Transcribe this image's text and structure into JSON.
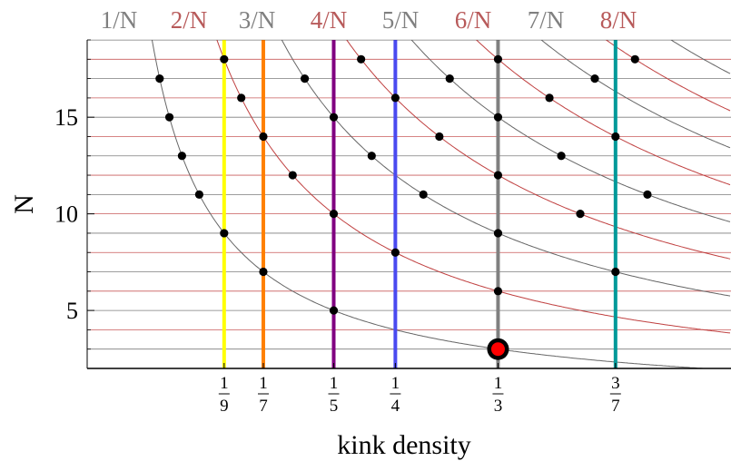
{
  "chart_data": {
    "type": "line",
    "title": "",
    "xlabel": "kink density",
    "ylabel": "N",
    "xlim": [
      0,
      0.49
    ],
    "ylim": [
      2,
      19
    ],
    "grid": "horizontal lines at each integer N from 2 to 19, alternating gray (odd N) and red (even N)",
    "y_ticks": [
      5,
      10,
      15
    ],
    "x_ticks": [
      {
        "value": 0.1111,
        "num": "1",
        "den": "9"
      },
      {
        "value": 0.1429,
        "num": "1",
        "den": "7"
      },
      {
        "value": 0.2,
        "num": "1",
        "den": "5"
      },
      {
        "value": 0.25,
        "num": "1",
        "den": "4"
      },
      {
        "value": 0.3333,
        "num": "1",
        "den": "3"
      },
      {
        "value": 0.4286,
        "num": "3",
        "den": "7"
      }
    ],
    "curve_labels": [
      {
        "k": 1,
        "label": "1/N",
        "color": "#808080"
      },
      {
        "k": 2,
        "label": "2/N",
        "color": "#b85a5a"
      },
      {
        "k": 3,
        "label": "3/N",
        "color": "#808080"
      },
      {
        "k": 4,
        "label": "4/N",
        "color": "#b85a5a"
      },
      {
        "k": 5,
        "label": "5/N",
        "color": "#808080"
      },
      {
        "k": 6,
        "label": "6/N",
        "color": "#b85a5a"
      },
      {
        "k": 7,
        "label": "7/N",
        "color": "#808080"
      },
      {
        "k": 8,
        "label": "8/N",
        "color": "#b85a5a"
      }
    ],
    "curves_k": [
      1,
      2,
      3,
      4,
      5,
      6,
      7,
      8,
      9,
      10
    ],
    "curve_colors": {
      "odd": "#666666",
      "even": "#c04040"
    },
    "vertical_lines": [
      {
        "x": 0.1111,
        "color": "#ffff00"
      },
      {
        "x": 0.1429,
        "color": "#ff8000"
      },
      {
        "x": 0.2,
        "color": "#800080"
      },
      {
        "x": 0.25,
        "color": "#4a4af0"
      },
      {
        "x": 0.3333,
        "color": "#808080"
      },
      {
        "x": 0.4286,
        "color": "#009999"
      }
    ],
    "points": [
      {
        "x": 0.0588,
        "y": 17
      },
      {
        "x": 0.0667,
        "y": 15
      },
      {
        "x": 0.0769,
        "y": 13
      },
      {
        "x": 0.0909,
        "y": 11
      },
      {
        "x": 0.1111,
        "y": 18
      },
      {
        "x": 0.1111,
        "y": 9
      },
      {
        "x": 0.125,
        "y": 16
      },
      {
        "x": 0.1429,
        "y": 14
      },
      {
        "x": 0.1429,
        "y": 7
      },
      {
        "x": 0.1667,
        "y": 12
      },
      {
        "x": 0.1765,
        "y": 17
      },
      {
        "x": 0.2,
        "y": 15
      },
      {
        "x": 0.2,
        "y": 10
      },
      {
        "x": 0.2,
        "y": 5
      },
      {
        "x": 0.2222,
        "y": 18
      },
      {
        "x": 0.25,
        "y": 16
      },
      {
        "x": 0.25,
        "y": 8
      },
      {
        "x": 0.2308,
        "y": 13
      },
      {
        "x": 0.2727,
        "y": 11
      },
      {
        "x": 0.2857,
        "y": 14
      },
      {
        "x": 0.2941,
        "y": 17
      },
      {
        "x": 0.3333,
        "y": 18
      },
      {
        "x": 0.3333,
        "y": 15
      },
      {
        "x": 0.3333,
        "y": 12
      },
      {
        "x": 0.3333,
        "y": 9
      },
      {
        "x": 0.3333,
        "y": 6
      },
      {
        "x": 0.375,
        "y": 16
      },
      {
        "x": 0.3846,
        "y": 13
      },
      {
        "x": 0.4,
        "y": 10
      },
      {
        "x": 0.4118,
        "y": 17
      },
      {
        "x": 0.4286,
        "y": 14
      },
      {
        "x": 0.4286,
        "y": 7
      },
      {
        "x": 0.4444,
        "y": 18
      },
      {
        "x": 0.4545,
        "y": 11
      }
    ],
    "highlight_point": {
      "x": 0.3333,
      "y": 3,
      "color": "#ff0000"
    }
  }
}
